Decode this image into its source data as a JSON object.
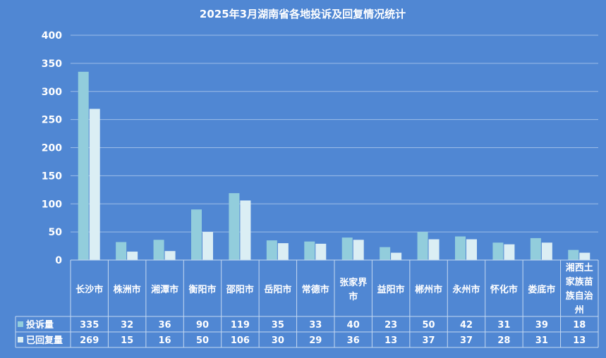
{
  "chart_data": {
    "type": "bar",
    "title": "2025年3月湖南省各地投诉及回复情况统计",
    "categories": [
      "长沙市",
      "株洲市",
      "湘潭市",
      "衡阳市",
      "邵阳市",
      "岳阳市",
      "常德市",
      "张家界市",
      "益阳市",
      "郴州市",
      "永州市",
      "怀化市",
      "娄底市",
      "湘西土家族苗族自治州"
    ],
    "category_lines": [
      [
        "长沙市"
      ],
      [
        "株洲市"
      ],
      [
        "湘潭市"
      ],
      [
        "衡阳市"
      ],
      [
        "邵阳市"
      ],
      [
        "岳阳市"
      ],
      [
        "常德市"
      ],
      [
        "张家界",
        "市"
      ],
      [
        "益阳市"
      ],
      [
        "郴州市"
      ],
      [
        "永州市"
      ],
      [
        "怀化市"
      ],
      [
        "娄底市"
      ],
      [
        "湘西土",
        "家族苗",
        "族自治",
        "州"
      ]
    ],
    "series": [
      {
        "name": "投诉量",
        "values": [
          335,
          32,
          36,
          90,
          119,
          35,
          33,
          40,
          23,
          50,
          42,
          31,
          39,
          18
        ],
        "color": "#92cddc"
      },
      {
        "name": "已回复量",
        "values": [
          269,
          15,
          16,
          50,
          106,
          30,
          29,
          36,
          13,
          37,
          37,
          28,
          31,
          13
        ],
        "color": "#dbeef4"
      }
    ],
    "ylim": [
      0,
      400
    ],
    "yticks": [
      0,
      50,
      100,
      150,
      200,
      250,
      300,
      350,
      400
    ],
    "grid": true,
    "legend": "data-table",
    "colors": {
      "background": "#5087d3",
      "grid": "#9dbde8",
      "axis": "#c5d9f1",
      "text": "#ffffff"
    }
  }
}
